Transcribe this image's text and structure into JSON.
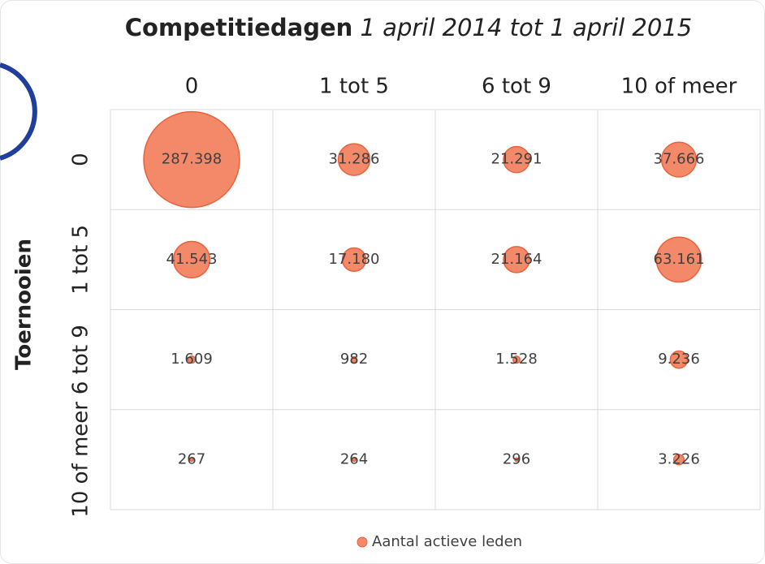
{
  "chart_data": {
    "type": "bubble",
    "title": "Competitiedagen",
    "subtitle": "1 april 2014 tot 1 april 2015",
    "y_label": "Toernooien",
    "x_categories": [
      "0",
      "1 tot 5",
      "6 tot 9",
      "10 of meer"
    ],
    "y_categories": [
      "0",
      "1 tot 5",
      "6 tot 9",
      "10 of meer"
    ],
    "series": [
      {
        "name": "Aantal actieve leden",
        "color": "#f4896a",
        "values": [
          [
            287398,
            31286,
            21291,
            37666
          ],
          [
            41543,
            17180,
            21164,
            63161
          ],
          [
            1609,
            982,
            1528,
            9236
          ],
          [
            267,
            264,
            296,
            3226
          ]
        ],
        "value_labels": [
          [
            "287.398",
            "31.286",
            "21.291",
            "37.666"
          ],
          [
            "41.543",
            "17.180",
            "21.164",
            "63.161"
          ],
          [
            "1.609",
            "982",
            "1.528",
            "9.236"
          ],
          [
            "267",
            "264",
            "296",
            "3.226"
          ]
        ]
      }
    ],
    "grid": true,
    "legend": "bottom"
  }
}
